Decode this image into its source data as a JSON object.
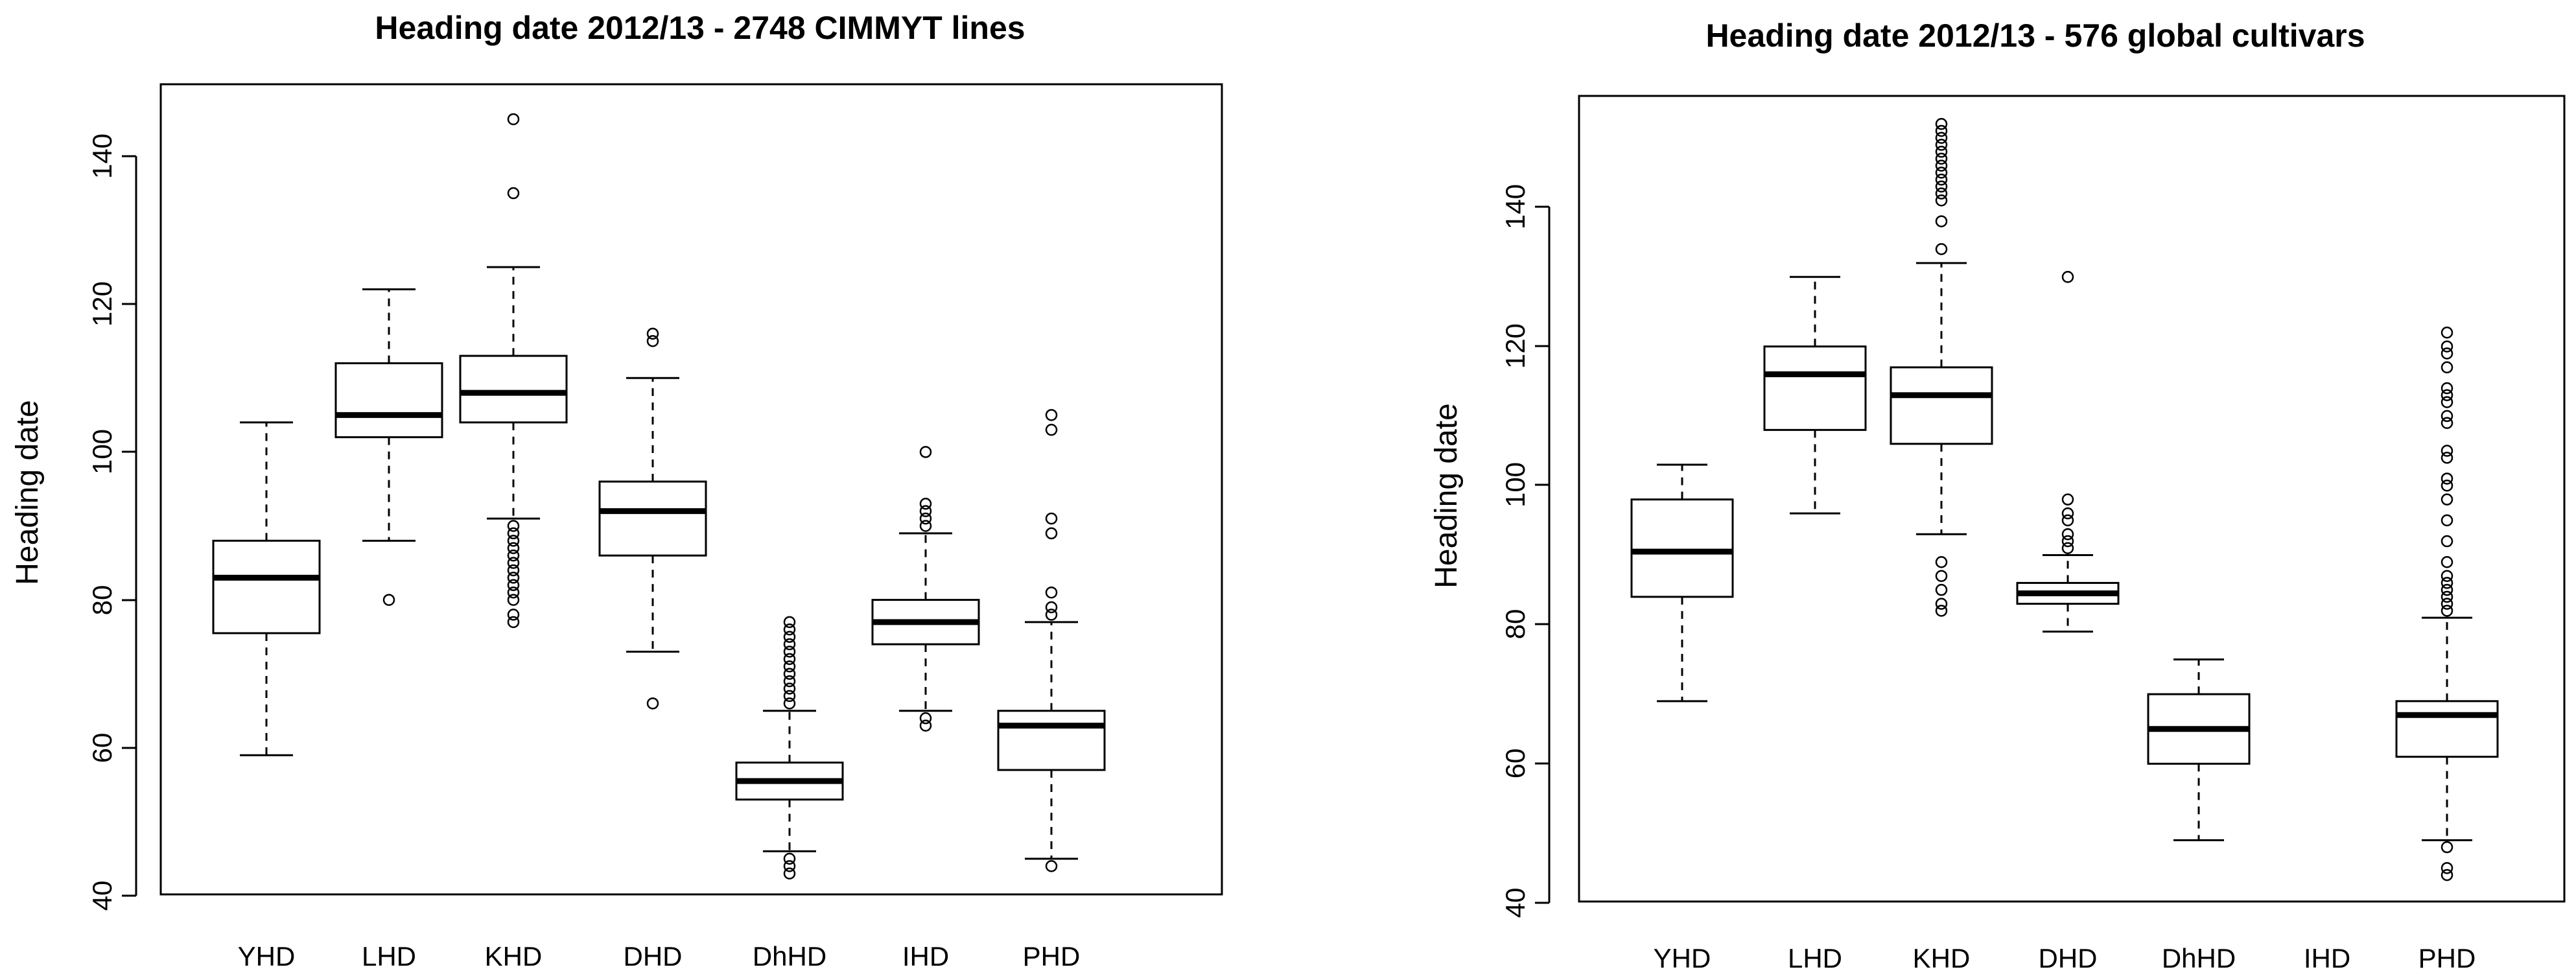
{
  "chart_data": [
    {
      "type": "boxplot",
      "title": "Heading date 2012/13  - 2748 CIMMYT lines",
      "xlabel": "",
      "ylabel": "Heading date",
      "categories": [
        "YHD",
        "LHD",
        "KHD",
        "DHD",
        "DhHD",
        "IHD",
        "PHD"
      ],
      "yticks": [
        40,
        60,
        80,
        100,
        120,
        140
      ],
      "ylim": [
        38,
        148
      ],
      "boxes": [
        {
          "name": "YHD",
          "min": 59,
          "q1": 75.5,
          "median": 83,
          "q3": 88,
          "max": 104,
          "outliers": []
        },
        {
          "name": "LHD",
          "min": 88,
          "q1": 102,
          "median": 105,
          "q3": 112,
          "max": 122,
          "outliers": [
            80
          ]
        },
        {
          "name": "KHD",
          "min": 91,
          "q1": 104,
          "median": 108,
          "q3": 113,
          "max": 125,
          "outliers": [
            77,
            78,
            80,
            81,
            82,
            83,
            84,
            85,
            86,
            87,
            88,
            89,
            90,
            135,
            145
          ]
        },
        {
          "name": "DHD",
          "min": 73,
          "q1": 86,
          "median": 92,
          "q3": 96,
          "max": 110,
          "outliers": [
            66,
            115,
            116
          ]
        },
        {
          "name": "DhHD",
          "min": 46,
          "q1": 53,
          "median": 55.5,
          "q3": 58,
          "max": 65,
          "outliers": [
            43,
            44,
            45,
            66,
            67,
            68,
            69,
            70,
            71,
            72,
            73,
            74,
            75,
            76,
            77
          ]
        },
        {
          "name": "IHD",
          "min": 65,
          "q1": 74,
          "median": 77,
          "q3": 80,
          "max": 89,
          "outliers": [
            63,
            64,
            90,
            91,
            92,
            93,
            100
          ]
        },
        {
          "name": "PHD",
          "min": 45,
          "q1": 57,
          "median": 63,
          "q3": 65,
          "max": 77,
          "outliers": [
            44,
            78,
            79,
            81,
            89,
            91,
            103,
            105
          ]
        }
      ]
    },
    {
      "type": "boxplot",
      "title": "Heading date 2012/13 - 576 global cultivars",
      "xlabel": "",
      "ylabel": "Heading date",
      "categories": [
        "YHD",
        "LHD",
        "KHD",
        "DHD",
        "DhHD",
        "IHD",
        "PHD"
      ],
      "yticks": [
        40,
        60,
        80,
        100,
        120,
        140
      ],
      "ylim": [
        40,
        156
      ],
      "boxes": [
        {
          "name": "YHD",
          "min": 69,
          "q1": 84,
          "median": 90.5,
          "q3": 98,
          "max": 103,
          "outliers": []
        },
        {
          "name": "LHD",
          "min": 96,
          "q1": 108,
          "median": 116,
          "q3": 120,
          "max": 130,
          "outliers": []
        },
        {
          "name": "KHD",
          "min": 93,
          "q1": 106,
          "median": 113,
          "q3": 117,
          "max": 132,
          "outliers": [
            82,
            83,
            85,
            87,
            89,
            134,
            138,
            141,
            142,
            143,
            144,
            145,
            146,
            147,
            148,
            149,
            150,
            151,
            152
          ]
        },
        {
          "name": "DHD",
          "min": 79,
          "q1": 83,
          "median": 84.5,
          "q3": 86,
          "max": 90,
          "outliers": [
            91,
            92,
            93,
            95,
            96,
            98,
            130
          ]
        },
        {
          "name": "DhHD",
          "min": 49,
          "q1": 60,
          "median": 65,
          "q3": 70,
          "max": 75,
          "outliers": []
        },
        {
          "name": "IHD",
          "empty": true
        },
        {
          "name": "PHD",
          "min": 49,
          "q1": 61,
          "median": 67,
          "q3": 69,
          "max": 81,
          "outliers": [
            44,
            45,
            48,
            82,
            83,
            84,
            85,
            86,
            87,
            89,
            92,
            95,
            98,
            100,
            101,
            104,
            105,
            109,
            110,
            112,
            113,
            114,
            117,
            119,
            120,
            122
          ]
        }
      ]
    }
  ]
}
